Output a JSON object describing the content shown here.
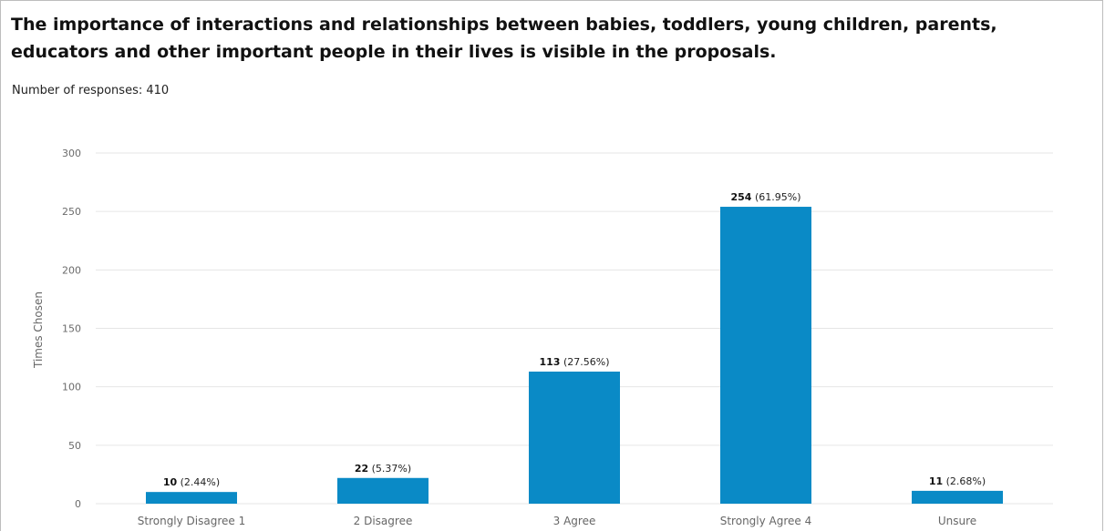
{
  "question_title": "The importance of interactions and relationships between babies, toddlers, young children, parents, educators and other important people in their lives is visible in the proposals.",
  "responses_text": "Number of responses: 410",
  "colors": {
    "bar": "#0a8ac6",
    "grid": "#e6e6e6"
  },
  "chart_data": {
    "type": "bar",
    "title": "The importance of interactions and relationships between babies, toddlers, young children, parents, educators and other important people in their lives is visible in the proposals.",
    "xlabel": "",
    "ylabel": "Times Chosen",
    "ylim": [
      0,
      300
    ],
    "yticks": [
      0,
      50,
      100,
      150,
      200,
      250,
      300
    ],
    "grid": true,
    "categories": [
      "Strongly Disagree 1",
      "2 Disagree",
      "3 Agree",
      "Strongly Agree 4",
      "Unsure"
    ],
    "values": [
      10,
      22,
      113,
      254,
      11
    ],
    "percent_labels": [
      "(2.44%)",
      "(5.37%)",
      "(27.56%)",
      "(61.95%)",
      "(2.68%)"
    ]
  }
}
